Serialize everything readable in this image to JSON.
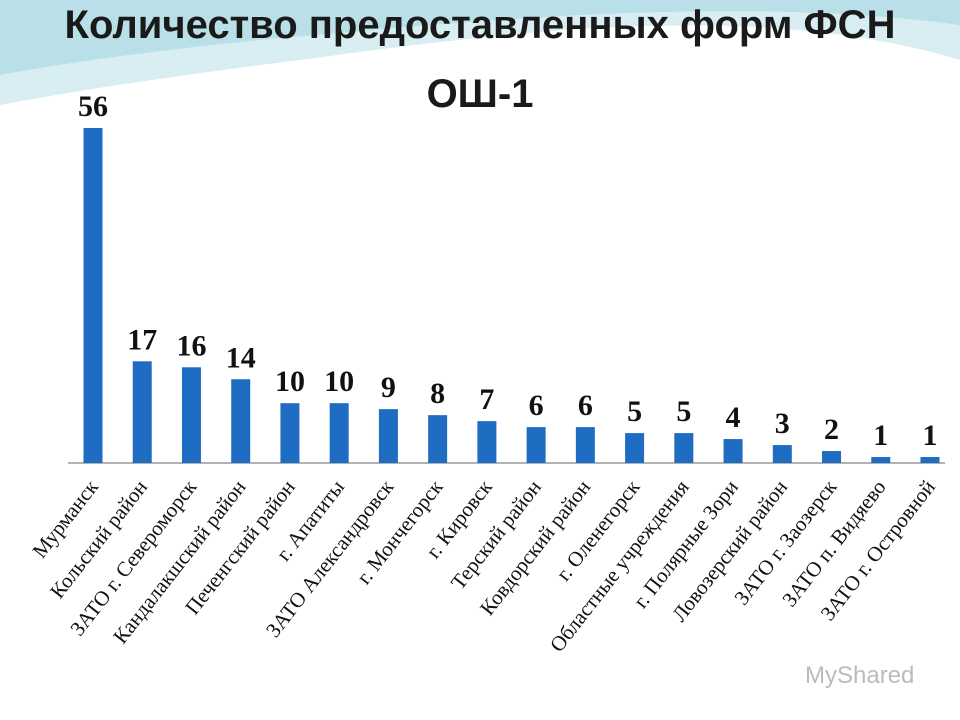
{
  "chart_data": {
    "type": "bar",
    "title_lines": [
      "Количество предоставленных форм ФСН",
      "ОШ-1"
    ],
    "categories": [
      "Мурманск",
      "Кольский район",
      "ЗАТО г. Североморск",
      "Кандалакшский район",
      "Печенгский район",
      "г. Апатиты",
      "ЗАТО Александровск",
      "г. Мончегорск",
      "г. Кировск",
      "Терский район",
      "Ковдорский район",
      "г. Оленегорск",
      "Областные учреждения",
      "г. Полярные Зори",
      "Ловозерский район",
      "ЗАТО г. Заозерск",
      "ЗАТО п. Видяево",
      "ЗАТО г. Островной"
    ],
    "values": [
      56,
      17,
      16,
      14,
      10,
      10,
      9,
      8,
      7,
      6,
      6,
      5,
      5,
      4,
      3,
      2,
      1,
      1
    ],
    "color": "#1f6dc2",
    "watermark": "MyShared"
  }
}
